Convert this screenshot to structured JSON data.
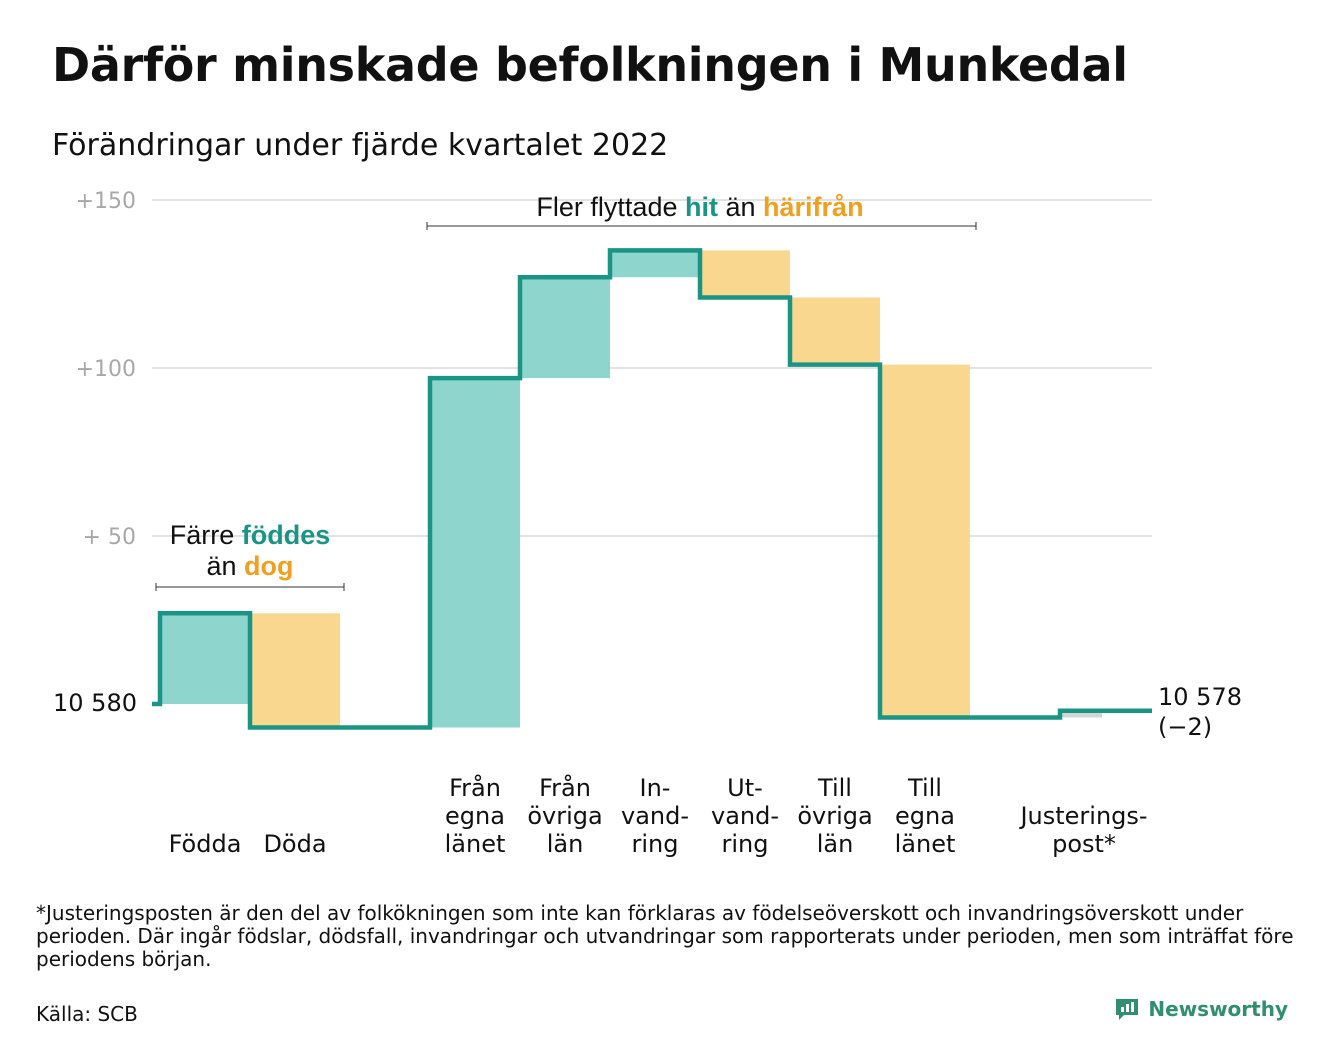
{
  "title": "Därför minskade befolkningen i Munkedal",
  "subtitle": "Förändringar under fjärde kvartalet 2022",
  "colors": {
    "in": "#8ed6cd",
    "out": "#fad78f",
    "line": "#1a9585",
    "adjust": "#cfd6d5",
    "grid": "#e2e2e2",
    "tick": "#a8a8a8",
    "accent_teal": "#1a9585",
    "accent_orange": "#f0a020",
    "brand": "#2f8f6e"
  },
  "annotations": {
    "born": {
      "line1_a": "Färre ",
      "line1_b": "föddes",
      "line2_a": "än ",
      "line2_b": "dog"
    },
    "moved": {
      "a": "Fler flyttade ",
      "b": "hit",
      "c": " än ",
      "d": "härifrån"
    }
  },
  "footnote": "*Justeringsposten är den del av folkökningen som inte kan förklaras av födelseöverskott och invandringsöverskott under perioden. Där ingår födslar, dödsfall, invandringar och utvandringar som rapporterats under perioden, men som inträffat före periodens början.",
  "source": "Källa: SCB",
  "brand": "Newsworthy",
  "chart_data": {
    "type": "waterfall",
    "start_label": "10 580",
    "end_label_line1": "10 578",
    "end_label_line2": "(−2)",
    "ylim": [
      -10,
      155
    ],
    "yticks": [
      {
        "value": 150,
        "label": "+150"
      },
      {
        "value": 100,
        "label": "+100"
      },
      {
        "value": 50,
        "label": "+ 50"
      }
    ],
    "steps": [
      {
        "name": "Födda",
        "label_lines": [
          "Födda"
        ],
        "value": 27,
        "kind": "in"
      },
      {
        "name": "Döda",
        "label_lines": [
          "Döda"
        ],
        "value": -34,
        "kind": "out"
      },
      {
        "name": "Från egna länet",
        "label_lines": [
          "Från",
          "egna",
          "länet"
        ],
        "value": 104,
        "kind": "in"
      },
      {
        "name": "Från övriga län",
        "label_lines": [
          "Från",
          "övriga",
          "län"
        ],
        "value": 30,
        "kind": "in"
      },
      {
        "name": "Invandring",
        "label_lines": [
          "In-",
          "vand-",
          "ring"
        ],
        "value": 8,
        "kind": "in"
      },
      {
        "name": "Utvandring",
        "label_lines": [
          "Ut-",
          "vand-",
          "ring"
        ],
        "value": -14,
        "kind": "out"
      },
      {
        "name": "Till övriga län",
        "label_lines": [
          "Till",
          "övriga",
          "län"
        ],
        "value": -20,
        "kind": "out"
      },
      {
        "name": "Till egna länet",
        "label_lines": [
          "Till",
          "egna",
          "länet"
        ],
        "value": -105,
        "kind": "out"
      },
      {
        "name": "Justeringspost",
        "label_lines": [
          "Justerings-",
          "post*"
        ],
        "value": 2,
        "kind": "adjust"
      }
    ]
  }
}
